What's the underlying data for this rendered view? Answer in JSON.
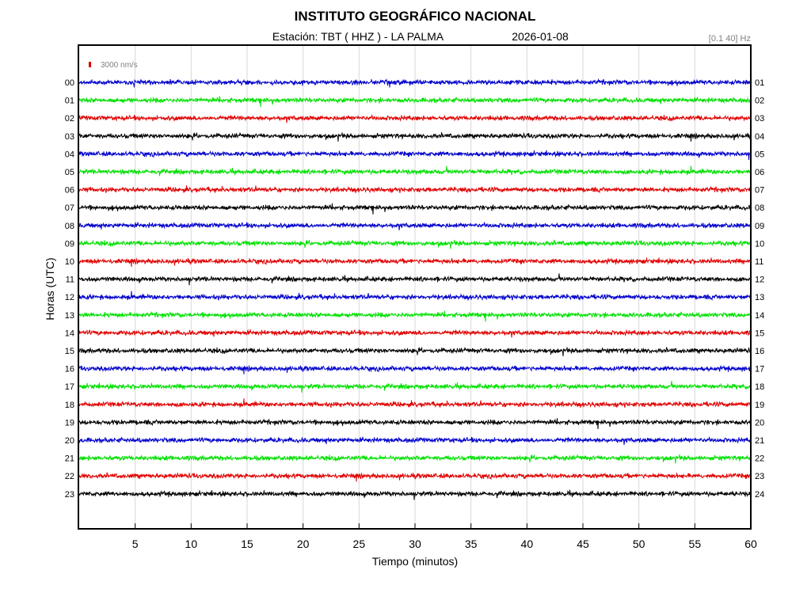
{
  "header": {
    "title": "INSTITUTO GEOGRÁFICO NACIONAL",
    "station": "Estación:  TBT ( HHZ ) - LA PALMA",
    "date": "2026-01-08",
    "filter": "[0.1 40] Hz",
    "scale_label": "3000 nm/s"
  },
  "chart_data": {
    "type": "line",
    "xlabel": "Tiempo (minutos)",
    "ylabel": "Horas (UTC)",
    "xlim": [
      0,
      60
    ],
    "x_ticks": [
      "5",
      "10",
      "15",
      "20",
      "25",
      "30",
      "35",
      "40",
      "45",
      "50",
      "55",
      "60"
    ],
    "x_tick_values": [
      5,
      10,
      15,
      20,
      25,
      30,
      35,
      40,
      45,
      50,
      55,
      60
    ],
    "left_labels": [
      "00",
      "01",
      "02",
      "03",
      "04",
      "05",
      "06",
      "07",
      "08",
      "09",
      "10",
      "11",
      "12",
      "13",
      "14",
      "15",
      "16",
      "17",
      "18",
      "19",
      "20",
      "21",
      "22",
      "23"
    ],
    "right_labels": [
      "01",
      "02",
      "03",
      "04",
      "05",
      "06",
      "07",
      "08",
      "09",
      "10",
      "11",
      "12",
      "13",
      "14",
      "15",
      "16",
      "17",
      "18",
      "19",
      "20",
      "21",
      "22",
      "23",
      "24"
    ],
    "trace_colors": [
      "#0000cc",
      "#00e000",
      "#e00000",
      "#000000"
    ],
    "grid": "vertical, every 5 minutes",
    "scale_color": "#e00000"
  }
}
